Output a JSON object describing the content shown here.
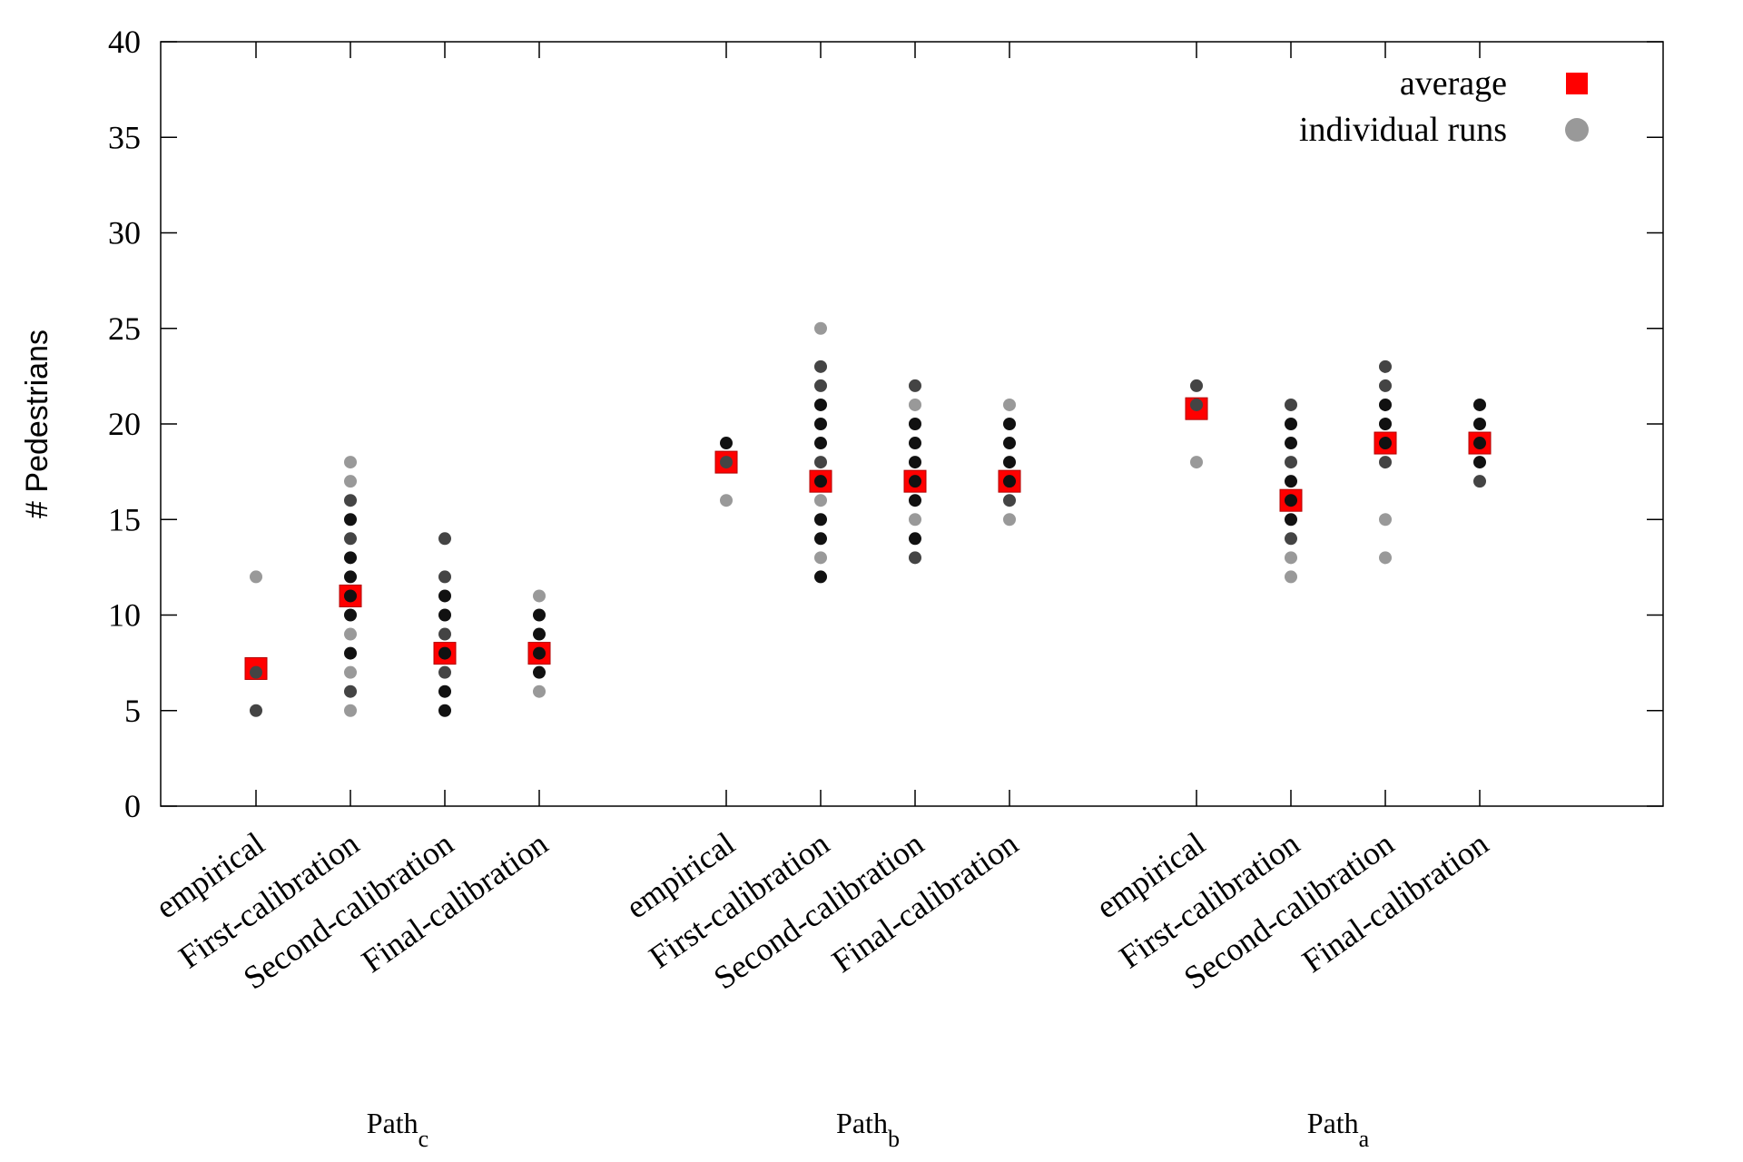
{
  "chart_data": {
    "type": "scatter",
    "title": "",
    "xlabel": "",
    "ylabel": "# Pedestrians",
    "ylim": [
      0,
      40
    ],
    "yticks": [
      0,
      5,
      10,
      15,
      20,
      25,
      30,
      35,
      40
    ],
    "grid": false,
    "legend": {
      "placement": "top-right",
      "entries": [
        {
          "label": "average",
          "marker": "square",
          "color": "#ff0000"
        },
        {
          "label": "individual runs",
          "marker": "circle",
          "color": "#999999"
        }
      ]
    },
    "colors": {
      "average": "#ff0000",
      "average_edge": "#b20000",
      "run_dark": "#111111",
      "run_mid": "#444444",
      "run_light": "#999999"
    },
    "groups": [
      {
        "name": "Path",
        "subscript": "c",
        "categories": [
          {
            "label": "empirical",
            "average": 7.2,
            "runs": [
              12,
              7,
              5
            ],
            "run_shades": [
              "light",
              "mid",
              "mid"
            ]
          },
          {
            "label": "First-calibration",
            "average": 11,
            "runs": [
              18,
              17,
              16,
              15,
              14,
              13,
              12,
              11,
              10,
              9,
              8,
              7,
              6,
              5
            ],
            "run_shades": [
              "light",
              "light",
              "mid",
              "dark",
              "mid",
              "dark",
              "dark",
              "dark",
              "dark",
              "light",
              "dark",
              "light",
              "mid",
              "light"
            ]
          },
          {
            "label": "Second-calibration",
            "average": 8,
            "runs": [
              14,
              12,
              11,
              10,
              9,
              8,
              7,
              6,
              5
            ],
            "run_shades": [
              "mid",
              "mid",
              "dark",
              "dark",
              "mid",
              "dark",
              "mid",
              "dark",
              "dark"
            ]
          },
          {
            "label": "Final-calibration",
            "average": 8,
            "runs": [
              11,
              10,
              9,
              8,
              7,
              6
            ],
            "run_shades": [
              "light",
              "dark",
              "dark",
              "dark",
              "dark",
              "light"
            ]
          }
        ]
      },
      {
        "name": "Path",
        "subscript": "b",
        "categories": [
          {
            "label": "empirical",
            "average": 18,
            "runs": [
              19,
              18,
              16
            ],
            "run_shades": [
              "dark",
              "mid",
              "light"
            ]
          },
          {
            "label": "First-calibration",
            "average": 17,
            "runs": [
              25,
              23,
              22,
              21,
              20,
              19,
              18,
              17,
              16,
              15,
              14,
              13,
              12
            ],
            "run_shades": [
              "light",
              "mid",
              "mid",
              "dark",
              "dark",
              "dark",
              "mid",
              "dark",
              "light",
              "dark",
              "dark",
              "light",
              "dark"
            ]
          },
          {
            "label": "Second-calibration",
            "average": 17,
            "runs": [
              22,
              21,
              20,
              19,
              18,
              17,
              16,
              15,
              14,
              13
            ],
            "run_shades": [
              "mid",
              "light",
              "dark",
              "dark",
              "dark",
              "dark",
              "dark",
              "light",
              "dark",
              "mid"
            ]
          },
          {
            "label": "Final-calibration",
            "average": 17,
            "runs": [
              21,
              20,
              19,
              18,
              17,
              16,
              15
            ],
            "run_shades": [
              "light",
              "dark",
              "dark",
              "dark",
              "dark",
              "mid",
              "light"
            ]
          }
        ]
      },
      {
        "name": "Path",
        "subscript": "a",
        "categories": [
          {
            "label": "empirical",
            "average": 20.8,
            "runs": [
              22,
              21,
              18
            ],
            "run_shades": [
              "mid",
              "mid",
              "light"
            ]
          },
          {
            "label": "First-calibration",
            "average": 16,
            "runs": [
              21,
              20,
              19,
              18,
              17,
              16,
              15,
              14,
              13,
              12
            ],
            "run_shades": [
              "mid",
              "dark",
              "dark",
              "mid",
              "dark",
              "dark",
              "dark",
              "mid",
              "light",
              "light"
            ]
          },
          {
            "label": "Second-calibration",
            "average": 19,
            "runs": [
              23,
              22,
              21,
              20,
              19,
              18,
              15,
              13
            ],
            "run_shades": [
              "mid",
              "mid",
              "dark",
              "dark",
              "dark",
              "mid",
              "light",
              "light"
            ]
          },
          {
            "label": "Final-calibration",
            "average": 19,
            "runs": [
              21,
              20,
              19,
              18,
              17
            ],
            "run_shades": [
              "dark",
              "dark",
              "dark",
              "dark",
              "mid"
            ]
          }
        ]
      }
    ]
  }
}
